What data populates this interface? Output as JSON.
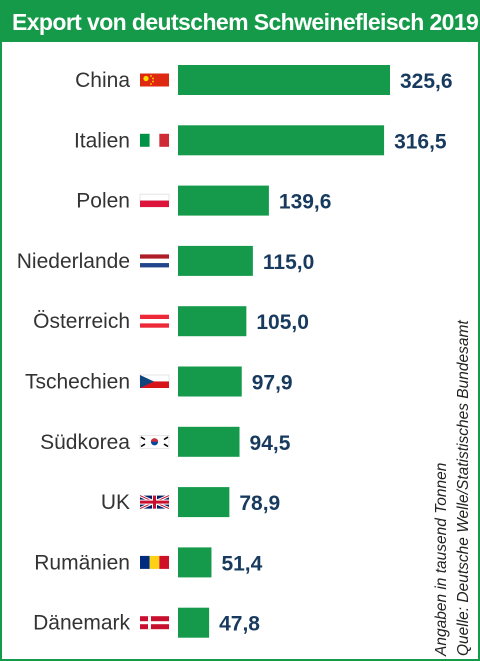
{
  "title": "Export von deutschem Schweinefleisch 2019",
  "note_unit": "Angaben in tausend Tonnen",
  "note_source": "Quelle: Deutsche Welle/Statistisches Bundesamt",
  "colors": {
    "bar": "#149a4a",
    "frame": "#159a4a",
    "value_text": "#173a5e"
  },
  "chart_data": {
    "type": "bar",
    "orientation": "horizontal",
    "categories": [
      "China",
      "Italien",
      "Polen",
      "Niederlande",
      "Österreich",
      "Tschechien",
      "Südkorea",
      "UK",
      "Rumänien",
      "Dänemark"
    ],
    "values": [
      325.6,
      316.5,
      139.6,
      115.0,
      105.0,
      97.9,
      94.5,
      78.9,
      51.4,
      47.8
    ],
    "value_labels": [
      "325,6",
      "316,5",
      "139,6",
      "115,0",
      "105,0",
      "97,9",
      "94,5",
      "78,9",
      "51,4",
      "47,8"
    ],
    "flag_icons": [
      "flag-china-icon",
      "flag-italy-icon",
      "flag-poland-icon",
      "flag-netherlands-icon",
      "flag-austria-icon",
      "flag-czechia-icon",
      "flag-south-korea-icon",
      "flag-uk-icon",
      "flag-romania-icon",
      "flag-denmark-icon"
    ],
    "xlim": [
      0,
      325.6
    ],
    "grid": false,
    "legend": "none"
  }
}
